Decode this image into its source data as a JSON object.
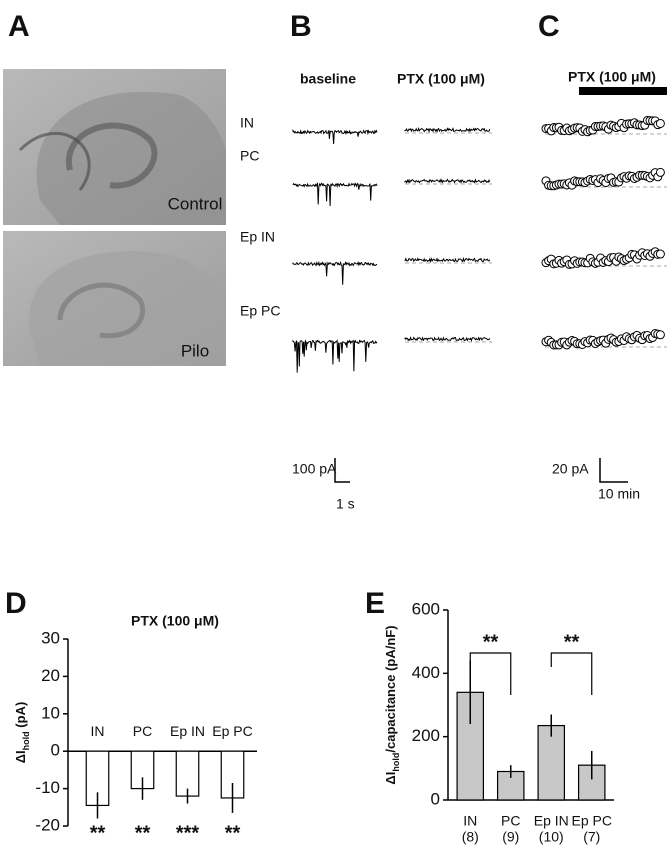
{
  "panels": {
    "a": {
      "label": "A",
      "images": [
        "Control",
        "Pilo"
      ]
    },
    "b": {
      "label": "B",
      "columns": [
        "baseline",
        "PTX (100 μM)"
      ],
      "rows": [
        "IN",
        "PC",
        "Ep IN",
        "Ep PC"
      ],
      "scale_y": "100 pA",
      "scale_x": "1 s"
    },
    "c": {
      "label": "C",
      "bar_label": "PTX (100 μM)",
      "scale_y": "20 pA",
      "scale_x": "10 min"
    },
    "d": {
      "label": "D"
    },
    "e": {
      "label": "E"
    }
  },
  "chart_data": [
    {
      "type": "bar",
      "title": "PTX (100 μM)",
      "ylabel": [
        "ΔI",
        "hold",
        " (pA)"
      ],
      "categories": [
        "IN",
        "PC",
        "Ep IN",
        "Ep PC"
      ],
      "values": [
        -14.5,
        -10,
        -12,
        -12.5
      ],
      "errors": [
        3.5,
        3,
        2,
        4
      ],
      "annotations": [
        "**",
        "**",
        "***",
        "**"
      ],
      "color": "#ffffff",
      "ylim": [
        -20,
        30
      ],
      "yticks": [
        -20,
        -10,
        0,
        10,
        20,
        30
      ]
    },
    {
      "type": "bar",
      "ylabel": [
        "ΔI",
        "hold",
        "/capacitance (pA/nF)"
      ],
      "categories": [
        "IN",
        "PC",
        "Ep IN",
        "Ep PC"
      ],
      "sample_sizes": [
        "(8)",
        "(9)",
        "(10)",
        "(7)"
      ],
      "values": [
        340,
        90,
        235,
        110
      ],
      "errors": [
        100,
        20,
        35,
        45
      ],
      "significance_labels": [
        "**",
        "**"
      ],
      "color": "#c8c8c8",
      "ylim": [
        0,
        600
      ],
      "yticks": [
        0,
        200,
        400,
        600
      ]
    }
  ]
}
